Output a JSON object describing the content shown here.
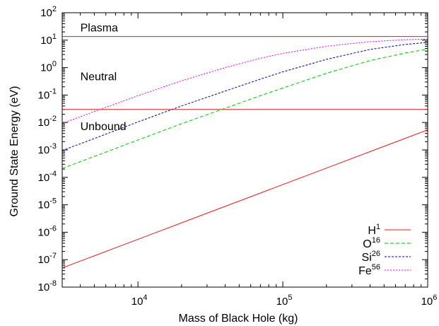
{
  "chart_data": {
    "type": "line",
    "title": "",
    "xlabel": "Mass of Black Hole (kg)",
    "ylabel": "Ground State Energy (eV)",
    "xscale": "log",
    "yscale": "log",
    "xlim": [
      3000,
      1000000
    ],
    "ylim": [
      1e-08,
      100
    ],
    "grid": false,
    "legend_position": "bottom-right",
    "x_ticks": [
      {
        "value": 10000,
        "base": "10",
        "exp": "4"
      },
      {
        "value": 100000,
        "base": "10",
        "exp": "5"
      },
      {
        "value": 1000000,
        "base": "10",
        "exp": "6"
      }
    ],
    "y_ticks": [
      {
        "value": 1e-08,
        "base": "10",
        "exp": "-8"
      },
      {
        "value": 1e-07,
        "base": "10",
        "exp": "-7"
      },
      {
        "value": 1e-06,
        "base": "10",
        "exp": "-6"
      },
      {
        "value": 1e-05,
        "base": "10",
        "exp": "-5"
      },
      {
        "value": 0.0001,
        "base": "10",
        "exp": "-4"
      },
      {
        "value": 0.001,
        "base": "10",
        "exp": "-3"
      },
      {
        "value": 0.01,
        "base": "10",
        "exp": "-2"
      },
      {
        "value": 0.1,
        "base": "10",
        "exp": "-1"
      },
      {
        "value": 1,
        "base": "10",
        "exp": "0"
      },
      {
        "value": 10,
        "base": "10",
        "exp": "1"
      },
      {
        "value": 100,
        "base": "10",
        "exp": "2"
      }
    ],
    "hlines": [
      {
        "y": 13.6,
        "color": "#e41a1c"
      },
      {
        "y": 0.03,
        "color": "#e41a1c"
      }
    ],
    "annotations": [
      {
        "text": "Plasma",
        "x": 4000,
        "y": 30
      },
      {
        "text": "Neutral",
        "x": 4000,
        "y": 0.5
      },
      {
        "text": "Unbound",
        "x": 4000,
        "y": 0.0075
      }
    ],
    "series": [
      {
        "name": "H",
        "name_sup": "1",
        "color": "#e41a1c",
        "dash": "",
        "x": [
          3000,
          1000000
        ],
        "y": [
          5e-08,
          0.0054
        ]
      },
      {
        "name": "O",
        "name_sup": "16",
        "color": "#00c000",
        "dash": "5,3",
        "x": [
          3000,
          5000,
          10000,
          20000,
          40000,
          70000,
          100000,
          200000,
          400000,
          700000,
          1000000
        ],
        "y": [
          0.00021,
          0.00058,
          0.0023,
          0.009,
          0.033,
          0.095,
          0.18,
          0.62,
          1.8,
          3.4,
          4.7
        ]
      },
      {
        "name": "Si",
        "name_sup": "26",
        "color": "#0000a0",
        "dash": "3,2",
        "x": [
          3000,
          5000,
          10000,
          20000,
          40000,
          70000,
          100000,
          200000,
          400000,
          700000,
          1000000
        ],
        "y": [
          0.00095,
          0.0026,
          0.0105,
          0.04,
          0.14,
          0.38,
          0.7,
          2.0,
          4.6,
          7.0,
          8.3
        ]
      },
      {
        "name": "Fe",
        "name_sup": "56",
        "color": "#e000e0",
        "dash": "2,2",
        "x": [
          3000,
          5000,
          10000,
          20000,
          40000,
          70000,
          100000,
          200000,
          400000,
          700000,
          1000000
        ],
        "y": [
          0.0093,
          0.025,
          0.095,
          0.33,
          1.0,
          2.2,
          3.3,
          6.0,
          8.8,
          10.4,
          11.0
        ]
      }
    ]
  }
}
